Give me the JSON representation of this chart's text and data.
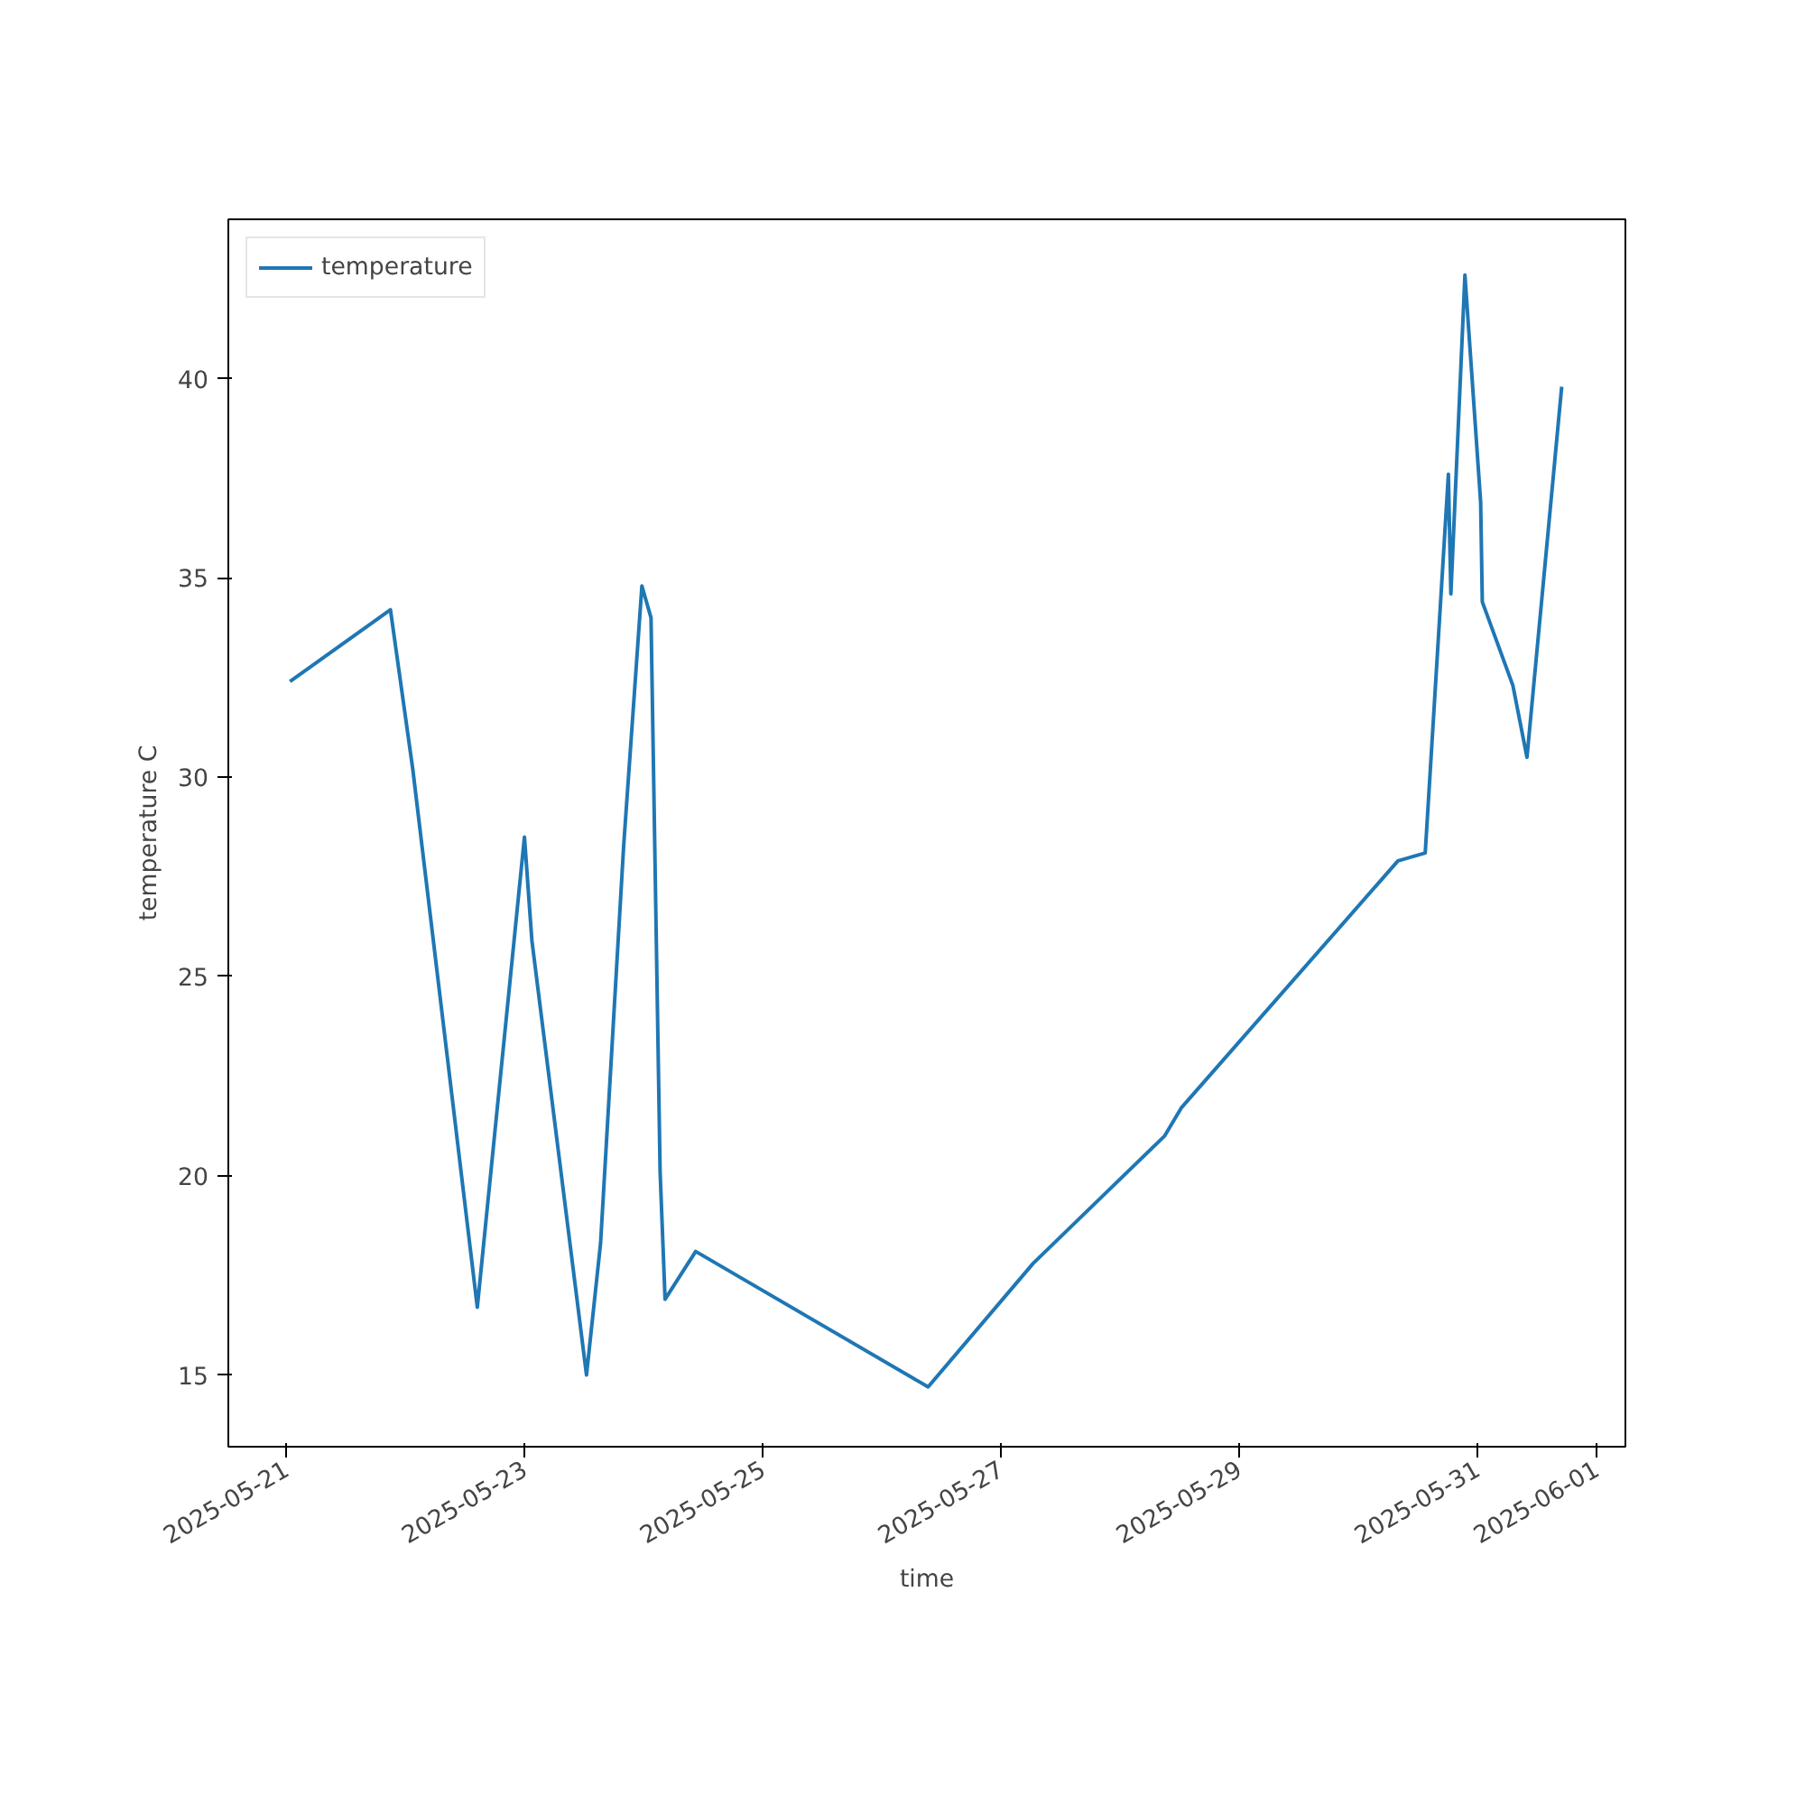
{
  "chart_data": {
    "type": "line",
    "xlabel": "time",
    "ylabel": "temperature C",
    "x": [
      "2025-05-21T00:45",
      "2025-05-21T21:00",
      "2025-05-22T01:30",
      "2025-05-22T14:30",
      "2025-05-23T00:00",
      "2025-05-23T01:30",
      "2025-05-23T12:30",
      "2025-05-23T15:20",
      "2025-05-23T20:00",
      "2025-05-23T23:40",
      "2025-05-24T01:30",
      "2025-05-24T03:20",
      "2025-05-24T04:20",
      "2025-05-24T10:30",
      "2025-05-26T09:20",
      "2025-05-27T06:30",
      "2025-05-28T09:00",
      "2025-05-28T12:20",
      "2025-05-30T08:00",
      "2025-05-30T13:30",
      "2025-05-30T18:10",
      "2025-05-30T18:40",
      "2025-05-30T21:30",
      "2025-05-31T00:40",
      "2025-05-31T01:00",
      "2025-05-31T07:10",
      "2025-05-31T10:00",
      "2025-05-31T17:00"
    ],
    "series": [
      {
        "name": "temperature",
        "color": "#1f77b4",
        "values": [
          32.4,
          34.2,
          30.2,
          16.7,
          28.5,
          25.9,
          15.0,
          18.3,
          28.3,
          34.8,
          34.0,
          20.1,
          16.9,
          18.1,
          14.7,
          17.8,
          21.0,
          21.7,
          27.9,
          28.1,
          37.6,
          34.6,
          42.6,
          36.9,
          34.4,
          32.3,
          30.5,
          39.8
        ]
      }
    ],
    "xlim": [
      "2025-05-20T12:20",
      "2025-06-01T05:50"
    ],
    "ylim": [
      13.2,
      44.0
    ],
    "xticks": [
      "2025-05-21",
      "2025-05-23",
      "2025-05-25",
      "2025-05-27",
      "2025-05-29",
      "2025-05-31",
      "2025-06-01"
    ],
    "yticks": [
      15,
      20,
      25,
      30,
      35,
      40
    ],
    "grid": false,
    "legend": "top left",
    "line_style": "solid",
    "marker": "none"
  }
}
